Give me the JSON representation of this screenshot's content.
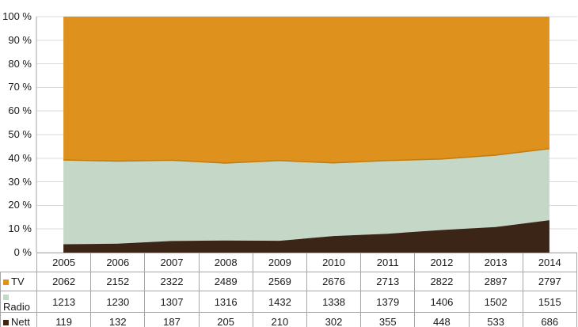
{
  "chart_data": {
    "type": "area",
    "stacking": "percent",
    "title": "",
    "xlabel": "",
    "ylabel": "",
    "categories": [
      "2005",
      "2006",
      "2007",
      "2008",
      "2009",
      "2010",
      "2011",
      "2012",
      "2013",
      "2014"
    ],
    "series": [
      {
        "name": "TV",
        "color": "#DE911D",
        "border_color": "#C07C0C",
        "values": [
          2062,
          2152,
          2322,
          2489,
          2569,
          2676,
          2713,
          2822,
          2897,
          2797
        ]
      },
      {
        "name": "Radio",
        "color": "#C5D8C7",
        "border_color": "#C5D8C7",
        "values": [
          1213,
          1230,
          1307,
          1316,
          1432,
          1338,
          1379,
          1406,
          1502,
          1515
        ]
      },
      {
        "name": "Nett",
        "color": "#3B2517",
        "border_color": "#3B2517",
        "values": [
          119,
          132,
          187,
          205,
          210,
          302,
          355,
          448,
          533,
          686
        ]
      }
    ],
    "stack_order_bottom_to_top": [
      "Nett",
      "Radio",
      "TV"
    ],
    "yticks": [
      "0 %",
      "10 %",
      "20 %",
      "30 %",
      "40 %",
      "50 %",
      "60 %",
      "70 %",
      "80 %",
      "90 %",
      "100 %"
    ],
    "ylim": [
      0,
      100
    ],
    "grid": true,
    "legend_position": "table-left-column",
    "colors": {
      "gridline": "#D9D9D9",
      "axis": "#A6A6A6",
      "table_border": "#A6A6A6",
      "text": "#1A1A1A",
      "background": "#FFFFFF"
    }
  }
}
